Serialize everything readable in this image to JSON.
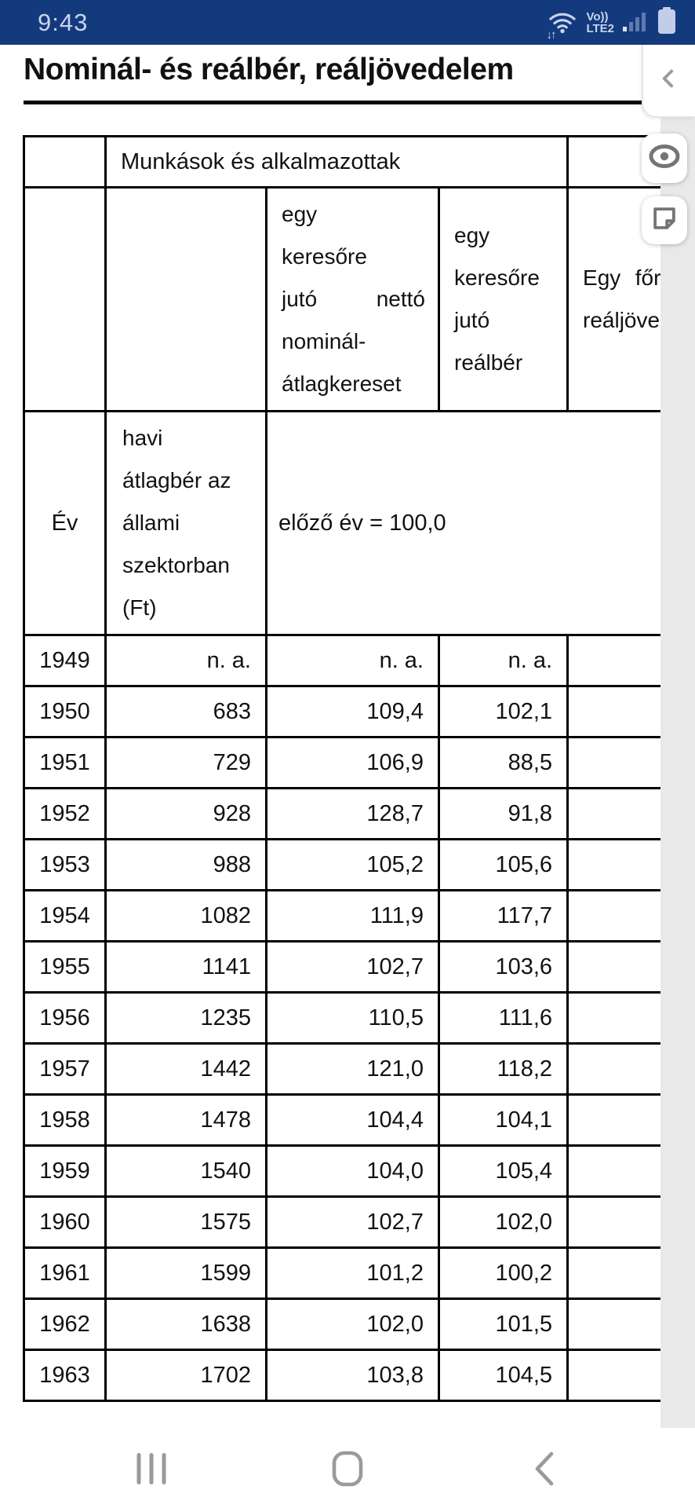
{
  "status_bar": {
    "time": "9:43",
    "network": {
      "line1": "Vo))",
      "line2": "LTE2",
      "arrows": "↓↑"
    },
    "icons": {
      "wifi": "wifi-icon",
      "signal": "signal-strength-icon",
      "battery": "battery-icon"
    }
  },
  "header": {
    "title": "Nominál- és reálbér, reáljövedelem",
    "collapse_chevron": "‹"
  },
  "side_tools": {
    "eye_button": "show-hide-toolbar",
    "note_button": "add-note"
  },
  "table": {
    "row1": {
      "group_header": "Munkások és alkalmazottak"
    },
    "row2": {
      "c3": {
        "l1": "egy",
        "l2": "keresőre",
        "l3a": "jutó",
        "l3b": "nettó",
        "l4": "nominál-",
        "l5": "átlagkereset"
      },
      "c4": {
        "l1": "egy",
        "l2": "keresőre",
        "l3": "jutó",
        "l4": "reálbér"
      },
      "c5": {
        "l1a": "Egy",
        "l1b": "főre",
        "l2": "reáljöve"
      }
    },
    "row3": {
      "c1": "Év",
      "c2": {
        "l1": "havi",
        "l2": "átlagbér az",
        "l3": "állami",
        "l4": "szektorban",
        "l5": "(Ft)"
      },
      "c3": "előző év = 100,0"
    },
    "rows": [
      [
        "1949",
        "n. a.",
        "n. a.",
        "n. a.",
        ""
      ],
      [
        "1950",
        "683",
        "109,4",
        "102,1",
        ""
      ],
      [
        "1951",
        "729",
        "106,9",
        "88,5",
        ""
      ],
      [
        "1952",
        "928",
        "128,7",
        "91,8",
        ""
      ],
      [
        "1953",
        "988",
        "105,2",
        "105,6",
        ""
      ],
      [
        "1954",
        "1082",
        "111,9",
        "117,7",
        ""
      ],
      [
        "1955",
        "1141",
        "102,7",
        "103,6",
        ""
      ],
      [
        "1956",
        "1235",
        "110,5",
        "111,6",
        ""
      ],
      [
        "1957",
        "1442",
        "121,0",
        "118,2",
        ""
      ],
      [
        "1958",
        "1478",
        "104,4",
        "104,1",
        ""
      ],
      [
        "1959",
        "1540",
        "104,0",
        "105,4",
        ""
      ],
      [
        "1960",
        "1575",
        "102,7",
        "102,0",
        ""
      ],
      [
        "1961",
        "1599",
        "101,2",
        "100,2",
        ""
      ],
      [
        "1962",
        "1638",
        "102,0",
        "101,5",
        ""
      ],
      [
        "1963",
        "1702",
        "103,8",
        "104,5",
        ""
      ]
    ]
  },
  "nav_bar": {
    "recents": "recents-icon",
    "home": "home-icon",
    "back": "back-icon"
  },
  "colors": {
    "status_bar_bg": "#143a7e",
    "status_fg": "#c9d4ec",
    "scroll_strip": "#e9e9e9",
    "table_border": "#000000",
    "tool_icon": "#757575",
    "nav_icon": "#9a9a9a"
  }
}
